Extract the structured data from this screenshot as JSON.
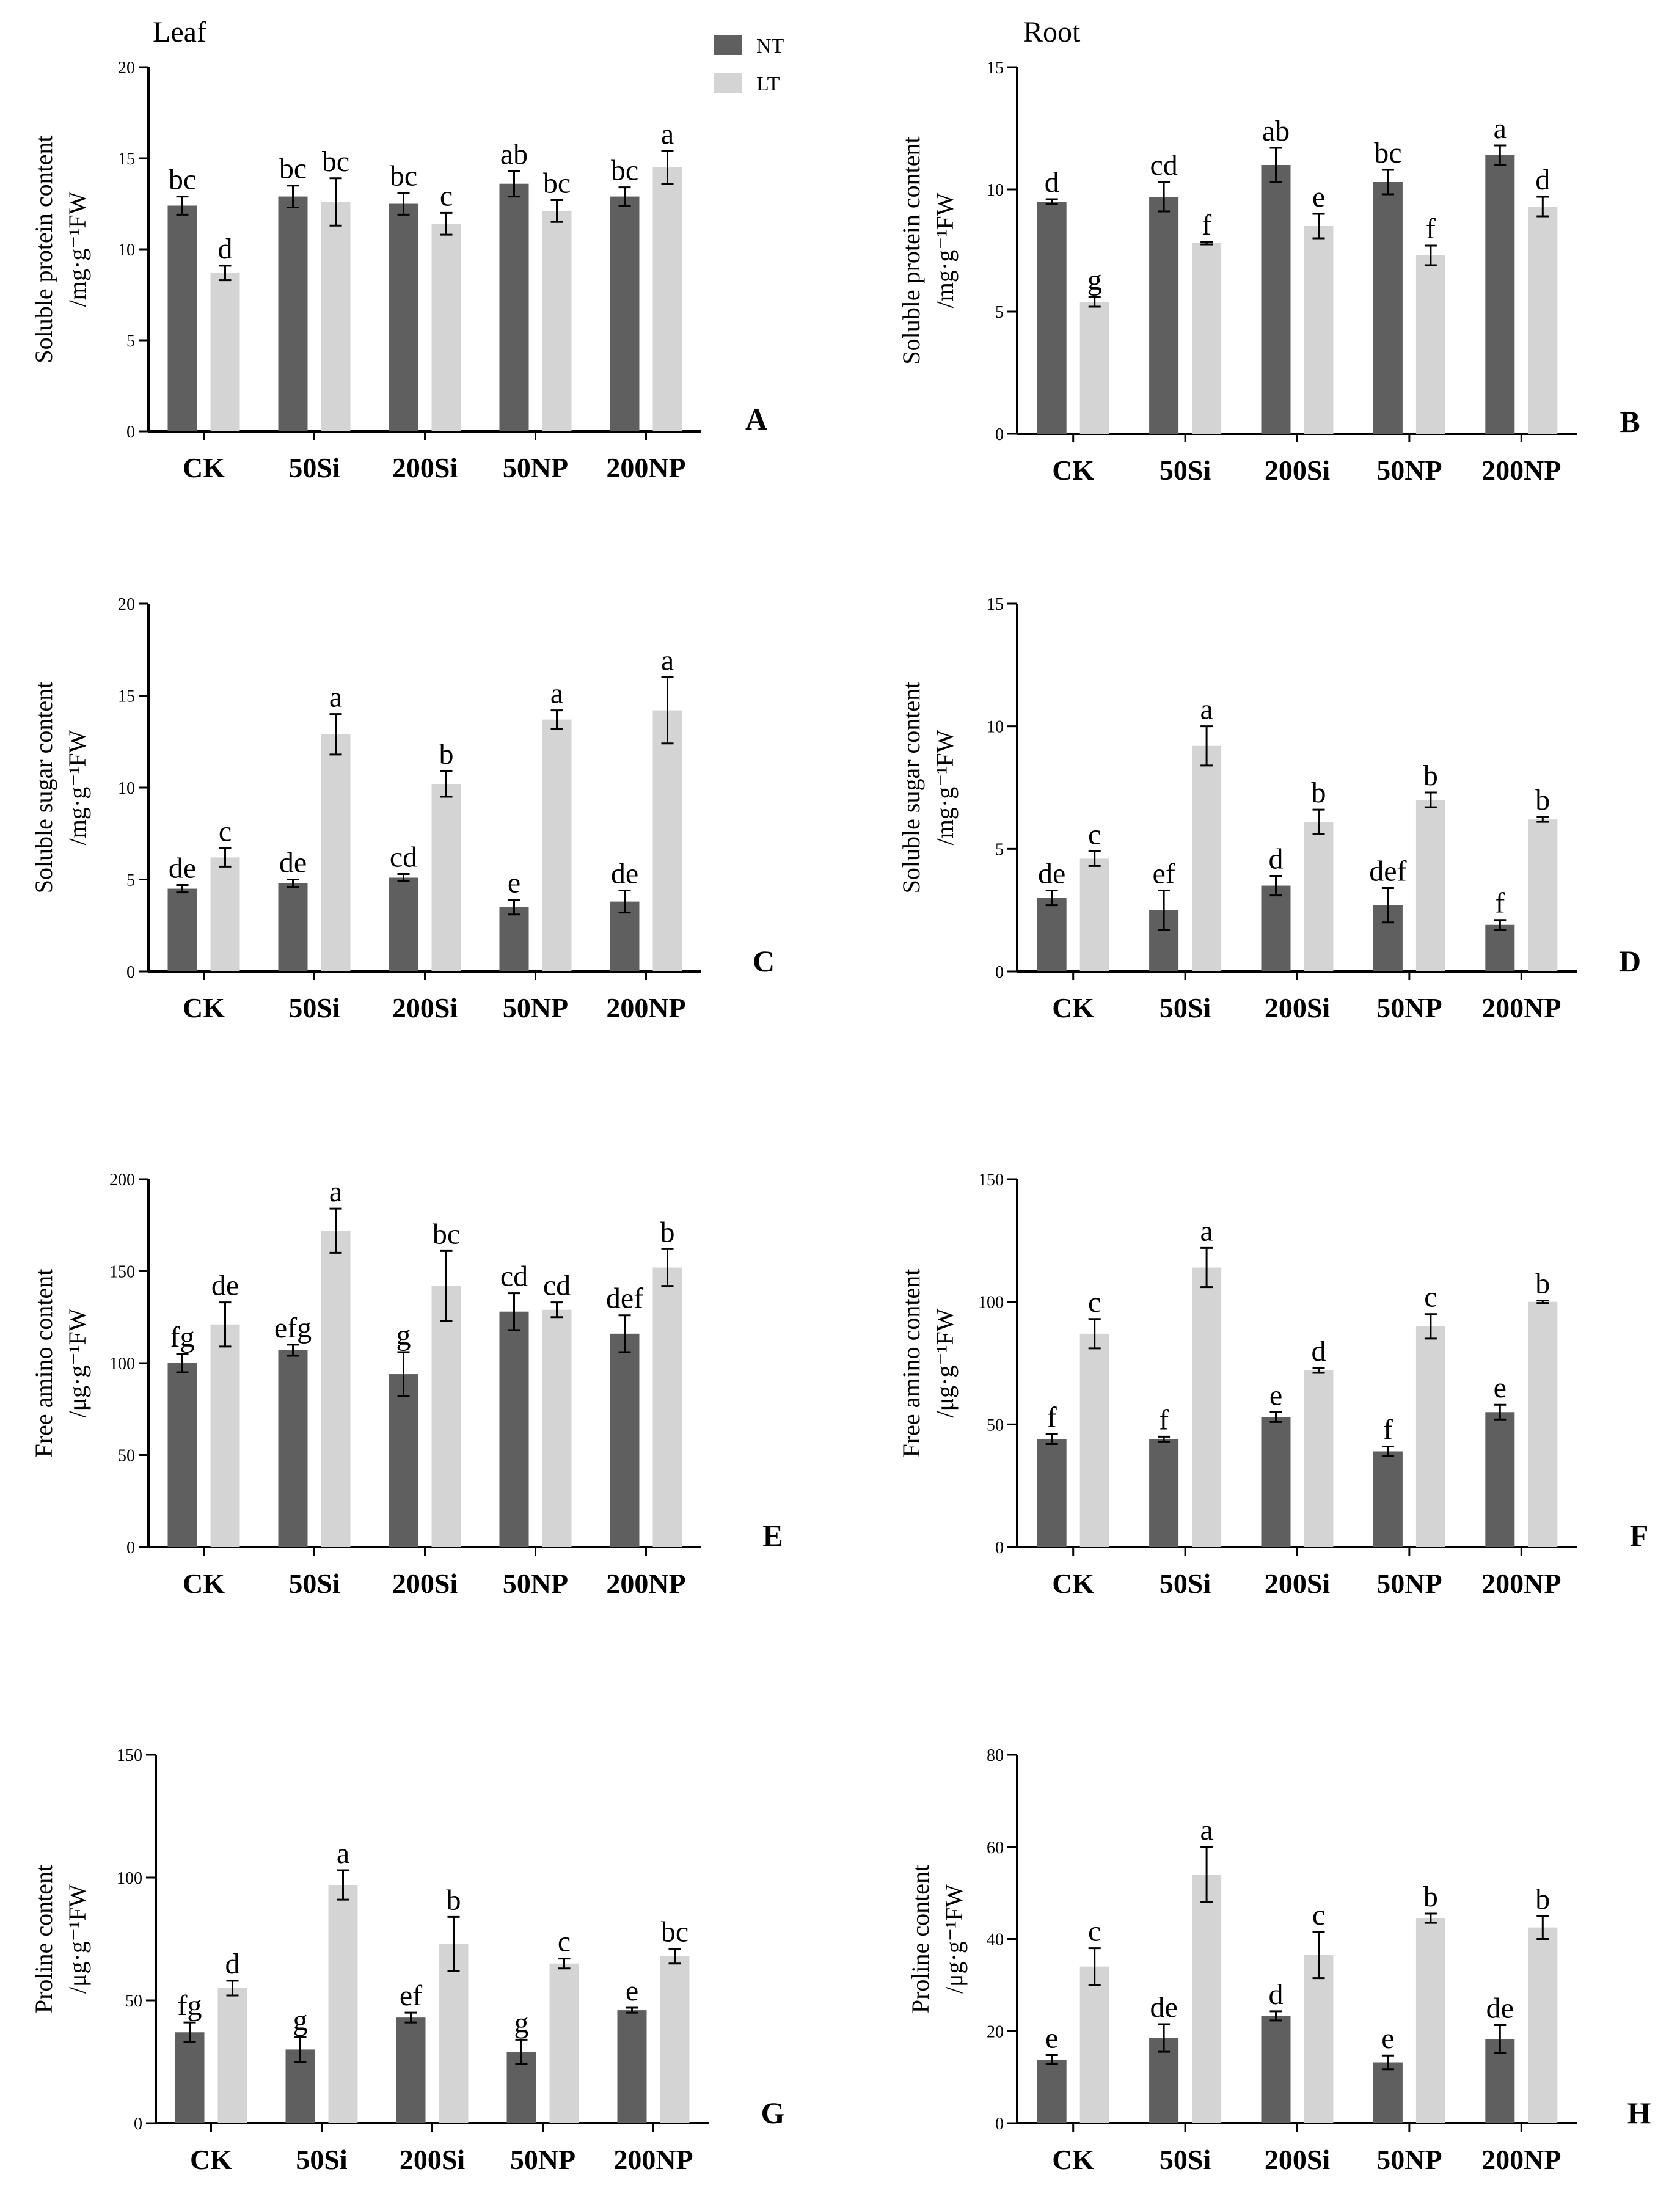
{
  "headers": {
    "left": "Leaf",
    "right": "Root"
  },
  "legend": [
    {
      "name": "NT",
      "color": "#5f5f5f"
    },
    {
      "name": "LT",
      "color": "#d4d4d4"
    }
  ],
  "colors": {
    "NT": "#5f5f5f",
    "LT": "#d4d4d4",
    "axis": "#000000"
  },
  "chart_data": [
    {
      "id": "A",
      "letter": "A",
      "type": "bar",
      "categories": [
        "CK",
        "50Si",
        "200Si",
        "50NP",
        "200NP"
      ],
      "ylim": [
        0,
        20
      ],
      "ticks": [
        "0",
        "5",
        "10",
        "15",
        "20"
      ],
      "ylabel_line1": "Soluble protein content",
      "ylabel_line2": "/mg·g⁻¹FW",
      "series": [
        {
          "name": "NT",
          "values": [
            12.4,
            12.9,
            12.5,
            13.6,
            12.9
          ],
          "errors": [
            0.5,
            0.6,
            0.6,
            0.7,
            0.5
          ],
          "labels": [
            "bc",
            "bc",
            "bc",
            "ab",
            "bc"
          ]
        },
        {
          "name": "LT",
          "values": [
            8.7,
            12.6,
            11.4,
            12.1,
            14.5
          ],
          "errors": [
            0.4,
            1.3,
            0.6,
            0.6,
            0.9
          ],
          "labels": [
            "d",
            "bc",
            "c",
            "bc",
            "a"
          ]
        }
      ]
    },
    {
      "id": "B",
      "letter": "B",
      "type": "bar",
      "categories": [
        "CK",
        "50Si",
        "200Si",
        "50NP",
        "200NP"
      ],
      "ylim": [
        0,
        15
      ],
      "ticks": [
        "0",
        "5",
        "10",
        "15"
      ],
      "ylabel_line1": "Soluble protein content",
      "ylabel_line2": "/mg·g⁻¹FW",
      "series": [
        {
          "name": "NT",
          "values": [
            9.5,
            9.7,
            11.0,
            10.3,
            11.4
          ],
          "errors": [
            0.1,
            0.6,
            0.7,
            0.5,
            0.4
          ],
          "labels": [
            "d",
            "cd",
            "ab",
            "bc",
            "a"
          ]
        },
        {
          "name": "LT",
          "values": [
            5.4,
            7.8,
            8.5,
            7.3,
            9.3
          ],
          "errors": [
            0.2,
            0.05,
            0.5,
            0.4,
            0.4
          ],
          "labels": [
            "g",
            "f",
            "e",
            "f",
            "d"
          ]
        }
      ]
    },
    {
      "id": "C",
      "letter": "C",
      "type": "bar",
      "categories": [
        "CK",
        "50Si",
        "200Si",
        "50NP",
        "200NP"
      ],
      "ylim": [
        0,
        20
      ],
      "ticks": [
        "0",
        "5",
        "10",
        "15",
        "20"
      ],
      "ylabel_line1": "Soluble sugar content",
      "ylabel_line2": "/mg·g⁻¹FW",
      "series": [
        {
          "name": "NT",
          "values": [
            4.5,
            4.8,
            5.1,
            3.5,
            3.8
          ],
          "errors": [
            0.2,
            0.2,
            0.2,
            0.4,
            0.6
          ],
          "labels": [
            "de",
            "de",
            "cd",
            "e",
            "de"
          ]
        },
        {
          "name": "LT",
          "values": [
            6.2,
            12.9,
            10.2,
            13.7,
            14.2
          ],
          "errors": [
            0.5,
            1.1,
            0.7,
            0.5,
            1.8
          ],
          "labels": [
            "c",
            "a",
            "b",
            "a",
            "a"
          ]
        }
      ]
    },
    {
      "id": "D",
      "letter": "D",
      "type": "bar",
      "categories": [
        "CK",
        "50Si",
        "200Si",
        "50NP",
        "200NP"
      ],
      "ylim": [
        0,
        15
      ],
      "ticks": [
        "0",
        "5",
        "10",
        "15"
      ],
      "ylabel_line1": "Soluble sugar content",
      "ylabel_line2": "/mg·g⁻¹FW",
      "series": [
        {
          "name": "NT",
          "values": [
            3.0,
            2.5,
            3.5,
            2.7,
            1.9
          ],
          "errors": [
            0.3,
            0.8,
            0.4,
            0.7,
            0.2
          ],
          "labels": [
            "de",
            "ef",
            "d",
            "def",
            "f"
          ]
        },
        {
          "name": "LT",
          "values": [
            4.6,
            9.2,
            6.1,
            7.0,
            6.2
          ],
          "errors": [
            0.3,
            0.8,
            0.5,
            0.3,
            0.1
          ],
          "labels": [
            "c",
            "a",
            "b",
            "b",
            "b"
          ]
        }
      ]
    },
    {
      "id": "E",
      "letter": "E",
      "type": "bar",
      "categories": [
        "CK",
        "50Si",
        "200Si",
        "50NP",
        "200NP"
      ],
      "ylim": [
        0,
        200
      ],
      "ticks": [
        "0",
        "50",
        "100",
        "150",
        "200"
      ],
      "ylabel_line1": "Free amino content",
      "ylabel_line2": "/μg·g⁻¹FW",
      "series": [
        {
          "name": "NT",
          "values": [
            100,
            107,
            94,
            128,
            116
          ],
          "errors": [
            5,
            3,
            12,
            10,
            10
          ],
          "labels": [
            "fg",
            "efg",
            "g",
            "cd",
            "def"
          ]
        },
        {
          "name": "LT",
          "values": [
            121,
            172,
            142,
            129,
            152
          ],
          "errors": [
            12,
            12,
            19,
            4,
            10
          ],
          "labels": [
            "de",
            "a",
            "bc",
            "cd",
            "b"
          ]
        }
      ]
    },
    {
      "id": "F",
      "letter": "F",
      "type": "bar",
      "categories": [
        "CK",
        "50Si",
        "200Si",
        "50NP",
        "200NP"
      ],
      "ylim": [
        0,
        150
      ],
      "ticks": [
        "0",
        "50",
        "100",
        "150"
      ],
      "ylabel_line1": "Free amino content",
      "ylabel_line2": "/μg·g⁻¹FW",
      "series": [
        {
          "name": "NT",
          "values": [
            44,
            44,
            53,
            39,
            55
          ],
          "errors": [
            2,
            1,
            2,
            2,
            3
          ],
          "labels": [
            "f",
            "f",
            "e",
            "f",
            "e"
          ]
        },
        {
          "name": "LT",
          "values": [
            87,
            114,
            72,
            90,
            100
          ],
          "errors": [
            6,
            8,
            1,
            5,
            0.5
          ],
          "labels": [
            "c",
            "a",
            "d",
            "c",
            "b"
          ]
        }
      ]
    },
    {
      "id": "G",
      "letter": "G",
      "type": "bar",
      "categories": [
        "CK",
        "50Si",
        "200Si",
        "50NP",
        "200NP"
      ],
      "ylim": [
        0,
        150
      ],
      "ticks": [
        "0",
        "50",
        "100",
        "150"
      ],
      "ylabel_line1": "Proline content",
      "ylabel_line2": "/μg·g⁻¹FW",
      "series": [
        {
          "name": "NT",
          "values": [
            37,
            30,
            43,
            29,
            46
          ],
          "errors": [
            4,
            5,
            2,
            5,
            1
          ],
          "labels": [
            "fg",
            "g",
            "ef",
            "g",
            "e"
          ]
        },
        {
          "name": "LT",
          "values": [
            55,
            97,
            73,
            65,
            68
          ],
          "errors": [
            3,
            6,
            11,
            2,
            3
          ],
          "labels": [
            "d",
            "a",
            "b",
            "c",
            "bc"
          ]
        }
      ]
    },
    {
      "id": "H",
      "letter": "H",
      "type": "bar",
      "categories": [
        "CK",
        "50Si",
        "200Si",
        "50NP",
        "200NP"
      ],
      "ylim": [
        0,
        80
      ],
      "ticks": [
        "0",
        "20",
        "40",
        "60",
        "80"
      ],
      "ylabel_line1": "Proline content",
      "ylabel_line2": "/μg·g⁻¹FW",
      "series": [
        {
          "name": "NT",
          "values": [
            13.8,
            18.5,
            23.3,
            13.2,
            18.3
          ],
          "errors": [
            1,
            3,
            1,
            1.5,
            3
          ],
          "labels": [
            "e",
            "de",
            "d",
            "e",
            "de"
          ]
        },
        {
          "name": "LT",
          "values": [
            34,
            54,
            36.5,
            44.5,
            42.5
          ],
          "errors": [
            4,
            6,
            5,
            1,
            2.5
          ],
          "labels": [
            "c",
            "a",
            "c",
            "b",
            "b"
          ]
        }
      ]
    }
  ]
}
